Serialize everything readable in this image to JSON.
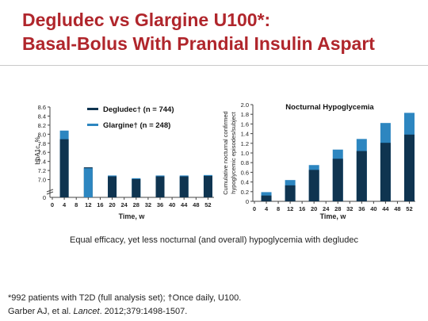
{
  "slide": {
    "title_line1": "Degludec vs Glargine U100*:",
    "title_line2": "Basal-Bolus With Prandial Insulin Aspart",
    "caption": "Equal efficacy, yet less nocturnal (and overall) hypoglycemia with degludec",
    "footnote1": "*992 patients with T2D (full analysis set); †Once daily, U100.",
    "footnote2_pre": "Garber AJ, et al. ",
    "footnote2_journal": "Lancet",
    "footnote2_post": ". 2012;379:1498-1507."
  },
  "colors": {
    "degludec": "#0f3450",
    "glargine": "#2d86c0",
    "title": "#b0262c"
  },
  "chart_data": [
    {
      "type": "bar",
      "ylabel": "HbA1c, %",
      "xlabel": "Time, w",
      "ylim": [
        6.8,
        8.6
      ],
      "yticks": [
        "7.0",
        "7.2",
        "7.4",
        "7.6",
        "7.8",
        "8.0",
        "8.2",
        "8.4",
        "8.6"
      ],
      "ytick_values": [
        7.0,
        7.2,
        7.4,
        7.6,
        7.8,
        8.0,
        8.2,
        8.4,
        8.6
      ],
      "ybreak_label": "0",
      "xticks": [
        "0",
        "4",
        "8",
        "12",
        "16",
        "20",
        "24",
        "28",
        "32",
        "36",
        "40",
        "44",
        "48",
        "52"
      ],
      "xlim": [
        0,
        54
      ],
      "legend": {
        "degludec": "Degludec† (n = 744)",
        "glargine": "Glargine† (n = 248)"
      },
      "series": [
        {
          "name": "Degludec† (n = 744)",
          "x": [
            4,
            12,
            20,
            28,
            36,
            44,
            52
          ],
          "values": [
            7.89,
            7.27,
            7.07,
            7.01,
            7.07,
            7.07,
            7.08
          ]
        },
        {
          "name": "Glargine† (n = 248)",
          "x": [
            4,
            12,
            20,
            28,
            36,
            44,
            52
          ],
          "values": [
            8.08,
            7.25,
            7.09,
            7.03,
            7.09,
            7.09,
            7.1
          ]
        }
      ]
    },
    {
      "type": "bar",
      "title": "Nocturnal Hypoglycemia",
      "ylabel_line1": "Cumulative nocturnal confirmed",
      "ylabel_line2": "hypoglycemic episodes/subject",
      "xlabel": "Time, w",
      "ylim": [
        0,
        2.0
      ],
      "yticks": [
        "0",
        "0.2",
        "0.4",
        "0.6",
        "0.8",
        "1.0",
        "1.2",
        "1.4",
        "1.6",
        "1.8",
        "2.0"
      ],
      "ytick_values": [
        0,
        0.2,
        0.4,
        0.6,
        0.8,
        1.0,
        1.2,
        1.4,
        1.6,
        1.8,
        2.0
      ],
      "xticks": [
        "0",
        "4",
        "8",
        "12",
        "16",
        "20",
        "24",
        "28",
        "32",
        "36",
        "40",
        "44",
        "48",
        "52"
      ],
      "xlim": [
        0,
        54
      ],
      "series": [
        {
          "name": "Degludec† (n = 744)",
          "x": [
            4,
            12,
            20,
            28,
            36,
            44,
            52
          ],
          "values": [
            0.12,
            0.33,
            0.65,
            0.88,
            1.04,
            1.21,
            1.38
          ]
        },
        {
          "name": "Glargine† (n = 248)",
          "x": [
            4,
            12,
            20,
            28,
            36,
            44,
            52
          ],
          "values": [
            0.19,
            0.44,
            0.75,
            1.07,
            1.29,
            1.62,
            1.83
          ]
        }
      ]
    }
  ]
}
